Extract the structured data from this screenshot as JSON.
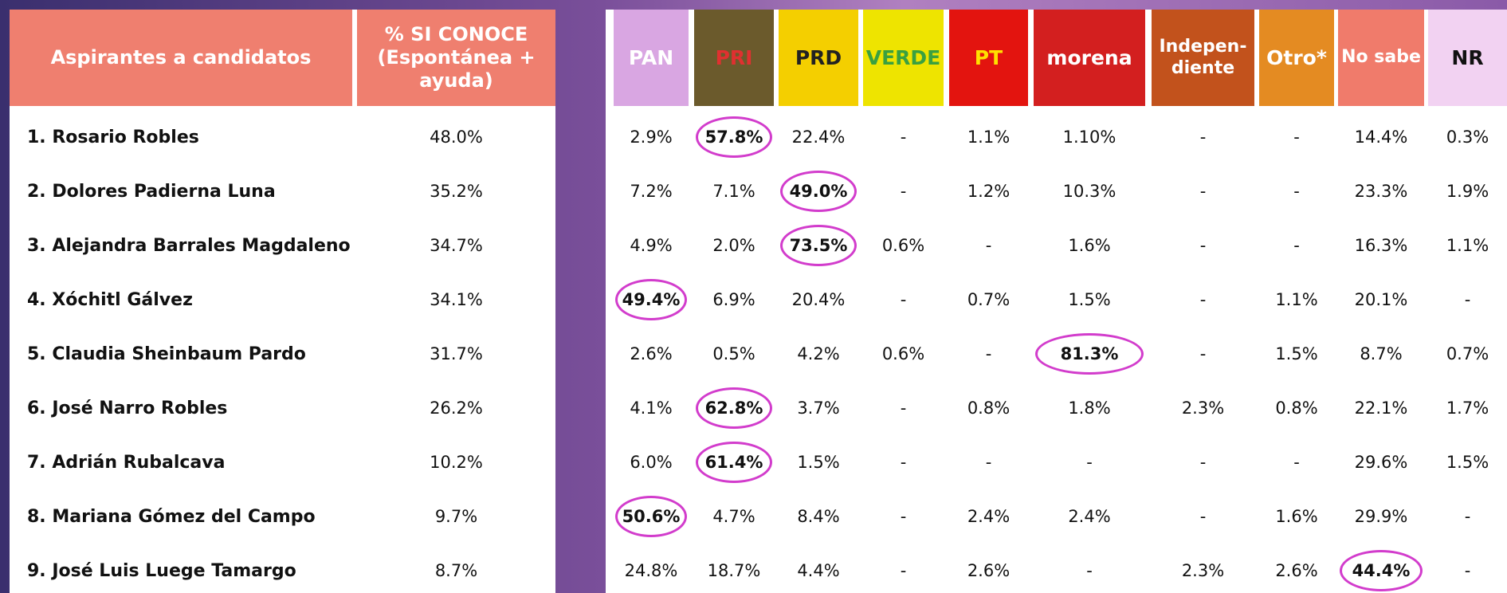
{
  "left_header": {
    "name": "Aspirantes a candidatos",
    "known": "% SI CONOCE\n(Espontánea +\nayuda)"
  },
  "parties": [
    {
      "label": "PAN",
      "color": "#d9a6e2",
      "text_color": "#ffffff"
    },
    {
      "label": "PRI",
      "color": "#6b5a2c",
      "text_color": "#e03030"
    },
    {
      "label": "PRD",
      "color": "#f4cf00",
      "text_color": "#222222"
    },
    {
      "label": "VERDE",
      "color": "#eee400",
      "text_color": "#3aa040"
    },
    {
      "label": "PT",
      "color": "#e3140f",
      "text_color": "#ffe000"
    },
    {
      "label": "morena",
      "color": "#d31f1f",
      "text_color": "#ffffff"
    },
    {
      "label": "Indepen-\ndiente",
      "color": "#c2521c",
      "text_color": "#ffffff"
    },
    {
      "label": "Otro*",
      "color": "#e48b22",
      "text_color": "#ffffff"
    },
    {
      "label": "No sabe",
      "color": "#f07b6b",
      "text_color": "#ffffff"
    },
    {
      "label": "NR",
      "color": "#f2d2f2",
      "text_color": "#111111"
    }
  ],
  "rows": [
    {
      "name": "1. Rosario Robles",
      "known": "48.0%",
      "values": [
        "2.9%",
        "57.8%",
        "22.4%",
        "-",
        "1.1%",
        "1.10%",
        "-",
        "-",
        "14.4%",
        "0.3%"
      ],
      "circled": 1
    },
    {
      "name": "2. Dolores Padierna Luna",
      "known": "35.2%",
      "values": [
        "7.2%",
        "7.1%",
        "49.0%",
        "-",
        "1.2%",
        "10.3%",
        "-",
        "-",
        "23.3%",
        "1.9%"
      ],
      "circled": 2
    },
    {
      "name": "3. Alejandra Barrales Magdaleno",
      "known": "34.7%",
      "values": [
        "4.9%",
        "2.0%",
        "73.5%",
        "0.6%",
        "-",
        "1.6%",
        "-",
        "-",
        "16.3%",
        "1.1%"
      ],
      "circled": 2
    },
    {
      "name": "4. Xóchitl Gálvez",
      "known": "34.1%",
      "values": [
        "49.4%",
        "6.9%",
        "20.4%",
        "-",
        "0.7%",
        "1.5%",
        "-",
        "1.1%",
        "20.1%",
        "-"
      ],
      "circled": 0
    },
    {
      "name": "5. Claudia Sheinbaum Pardo",
      "known": "31.7%",
      "values": [
        "2.6%",
        "0.5%",
        "4.2%",
        "0.6%",
        "-",
        "81.3%",
        "-",
        "1.5%",
        "8.7%",
        "0.7%"
      ],
      "circled": 5
    },
    {
      "name": "6. José Narro Robles",
      "known": "26.2%",
      "values": [
        "4.1%",
        "62.8%",
        "3.7%",
        "-",
        "0.8%",
        "1.8%",
        "2.3%",
        "0.8%",
        "22.1%",
        "1.7%"
      ],
      "circled": 1
    },
    {
      "name": "7. Adrián Rubalcava",
      "known": "10.2%",
      "values": [
        "6.0%",
        "61.4%",
        "1.5%",
        "-",
        "-",
        "-",
        "-",
        "-",
        "29.6%",
        "1.5%"
      ],
      "circled": 1
    },
    {
      "name": "8. Mariana Gómez del Campo",
      "known": "9.7%",
      "values": [
        "50.6%",
        "4.7%",
        "8.4%",
        "-",
        "2.4%",
        "2.4%",
        "-",
        "1.6%",
        "29.9%",
        "-"
      ],
      "circled": 0
    },
    {
      "name": "9. José Luis Luege Tamargo",
      "known": "8.7%",
      "values": [
        "24.8%",
        "18.7%",
        "4.4%",
        "-",
        "2.6%",
        "-",
        "2.3%",
        "2.6%",
        "44.4%",
        "-"
      ],
      "circled": 8
    }
  ]
}
